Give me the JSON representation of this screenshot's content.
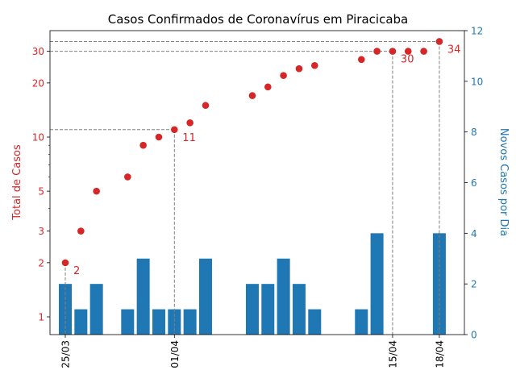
{
  "chart_data": {
    "type": "bar+scatter",
    "title": "Casos Confirmados de Coronavírus em Piracicaba",
    "y_left_label": "Total de Casos",
    "y_right_label": "Novos Casos por Dia",
    "y_left_scale": "log",
    "y_left_ticks": [
      "1",
      "2",
      "3",
      "5",
      "10",
      "20",
      "30"
    ],
    "y_left_tick_values": [
      1,
      2,
      3,
      5,
      10,
      20,
      30
    ],
    "y_right_ticks": [
      "0",
      "2",
      "4",
      "6",
      "8",
      "10",
      "12"
    ],
    "y_right_tick_values": [
      0,
      2,
      4,
      6,
      8,
      10,
      12
    ],
    "y_right_range": [
      0,
      12
    ],
    "x_tick_labels": [
      "25/03",
      "01/04",
      "15/04",
      "18/04"
    ],
    "x_tick_days": [
      0,
      7,
      21,
      24
    ],
    "days": [
      0,
      1,
      2,
      3,
      4,
      5,
      6,
      7,
      8,
      9,
      10,
      11,
      12,
      13,
      14,
      15,
      16,
      17,
      18,
      19,
      20,
      21,
      22,
      23,
      24
    ],
    "new_cases": [
      2,
      1,
      2,
      0,
      1,
      3,
      1,
      1,
      1,
      3,
      0,
      0,
      2,
      2,
      3,
      2,
      1,
      0,
      0,
      1,
      4,
      0,
      0,
      0,
      4
    ],
    "total_days": [
      0,
      1,
      2,
      4,
      5,
      6,
      7,
      8,
      9,
      12,
      13,
      14,
      15,
      16,
      19,
      20,
      21,
      22,
      23,
      24
    ],
    "total_cases": [
      2,
      3,
      5,
      6,
      9,
      10,
      11,
      12,
      15,
      17,
      19,
      22,
      24,
      25,
      27,
      30,
      30,
      30,
      30,
      34
    ],
    "annotations": [
      {
        "day": 0,
        "value": 2,
        "label": "2"
      },
      {
        "day": 7,
        "value": 11,
        "label": "11"
      },
      {
        "day": 21,
        "value": 30,
        "label": "30"
      },
      {
        "day": 24,
        "value": 34,
        "label": "34"
      }
    ],
    "colors": {
      "scatter": "#d62728",
      "bar": "#1f77b4",
      "guide": "#808080",
      "axis": "#000000"
    }
  }
}
